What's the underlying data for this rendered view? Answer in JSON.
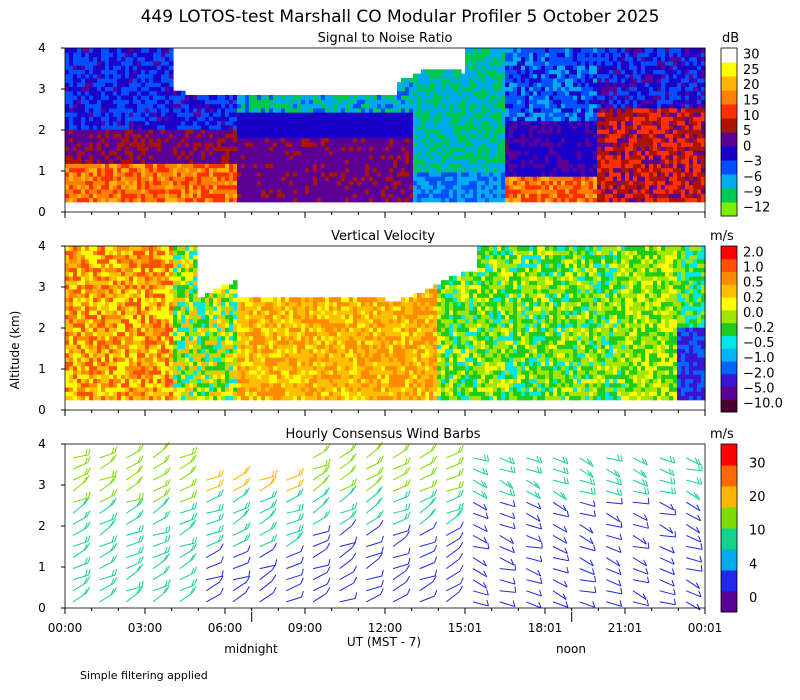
{
  "page_title": "449 LOTOS-test Marshall CO Modular Profiler  5 October 2025",
  "y_axis_label": "Altitude (km)",
  "x_axis": {
    "ticks": [
      "00:00",
      "03:00",
      "06:00",
      "09:00",
      "12:00",
      "15:01",
      "18:01",
      "21:01",
      "00:01"
    ],
    "label": "UT  (MST - 7)",
    "notes": [
      "midnight",
      "noon"
    ]
  },
  "footnote": "Simple filtering applied",
  "colors": {
    "snr": [
      "#78f000",
      "#00c850",
      "#00aaee",
      "#0050ff",
      "#1a00c8",
      "#5a0094",
      "#aa1400",
      "#ff3000",
      "#ff8000",
      "#ffb400",
      "#ffff00",
      "#ffffff"
    ],
    "velocity": [
      "#4b0032",
      "#5a0094",
      "#3c14d2",
      "#0064ff",
      "#00b4ff",
      "#00e6e6",
      "#1ecc1e",
      "#a0e600",
      "#ffff00",
      "#ffbe00",
      "#ff8c00",
      "#ff5000",
      "#ff0000"
    ],
    "wind": [
      "#5a0094",
      "#1e28e6",
      "#00aaee",
      "#14d28c",
      "#7ddc00",
      "#ffb400",
      "#ff6a00",
      "#ff0000"
    ]
  },
  "chart_data": [
    {
      "type": "heatmap",
      "title": "Signal to Noise Ratio",
      "xlabel": "UT  (MST - 7)",
      "ylabel": "Altitude (km)",
      "x_range_hours": [
        0,
        24
      ],
      "ylim": [
        0,
        4
      ],
      "y_ticks": [
        "0",
        "1",
        "2",
        "3",
        "4"
      ],
      "colorbar": {
        "unit": "dB",
        "labels": [
          "30",
          "25",
          "20",
          "15",
          "10",
          "5",
          "0",
          "−3",
          "−6",
          "−9",
          "−12"
        ]
      },
      "description_values": {
        "low_levels_night_dB": 15,
        "upper_levels_dB": -9,
        "clear_top_gap_hours": [
          4,
          15
        ]
      }
    },
    {
      "type": "heatmap",
      "title": "Vertical Velocity",
      "xlabel": "UT  (MST - 7)",
      "ylabel": "Altitude (km)",
      "x_range_hours": [
        0,
        24
      ],
      "ylim": [
        0,
        4
      ],
      "y_ticks": [
        "0",
        "1",
        "2",
        "3",
        "4"
      ],
      "colorbar": {
        "unit": "m/s",
        "labels": [
          "2.0",
          "1.0",
          "0.5",
          "0.2",
          "0.0",
          "−0.2",
          "−0.5",
          "−1.0",
          "−2.0",
          "−5.0",
          "−10.0"
        ]
      },
      "description_values": {
        "early_morning_m_s": 1.0,
        "midday_m_s": 0.2,
        "afternoon_m_s": -0.2,
        "late_evening_low_m_s": -2.0
      }
    },
    {
      "type": "scatter",
      "title": "Hourly Consensus Wind Barbs",
      "xlabel": "UT  (MST - 7)",
      "ylabel": "Altitude (km)",
      "x_range_hours": [
        0,
        24
      ],
      "ylim": [
        0,
        4
      ],
      "y_ticks": [
        "0",
        "1",
        "2",
        "3",
        "4"
      ],
      "colorbar": {
        "unit": "m/s",
        "labels": [
          "30",
          "20",
          "10",
          "4",
          "0"
        ]
      },
      "description_values": {
        "upper_speed_m_s": 15,
        "lower_speed_m_s": 4,
        "afternoon_low_speed_m_s": 2
      }
    }
  ]
}
